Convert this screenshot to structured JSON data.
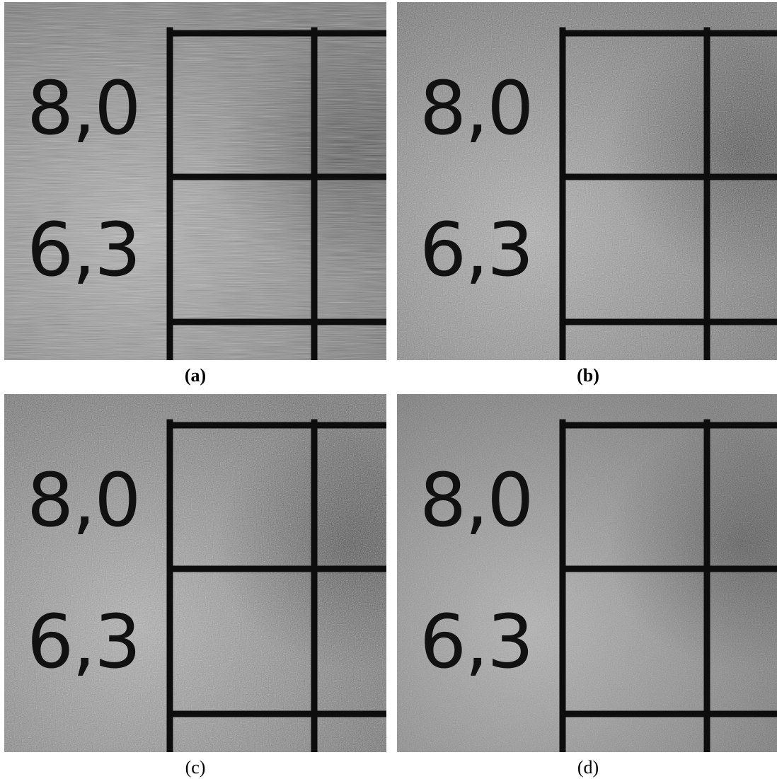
{
  "panels": [
    {
      "id": "a",
      "caption": "(a)",
      "caption_bold": true,
      "label_top": "8,0",
      "label_bottom": "6,3",
      "noise": "striped"
    },
    {
      "id": "b",
      "caption": "(b)",
      "caption_bold": true,
      "label_top": "8,0",
      "label_bottom": "6,3",
      "noise": "grain"
    },
    {
      "id": "c",
      "caption": "(c)",
      "caption_bold": false,
      "label_top": "8,0",
      "label_bottom": "6,3",
      "noise": "grain"
    },
    {
      "id": "d",
      "caption": "(d)",
      "caption_bold": false,
      "label_top": "8,0",
      "label_bottom": "6,3",
      "noise": "grain-fine"
    }
  ],
  "colors": {
    "background": "#ffffff",
    "paper_gray": "#8a8a8a",
    "grid_line": "#0d0d0d",
    "text": "#111111"
  }
}
